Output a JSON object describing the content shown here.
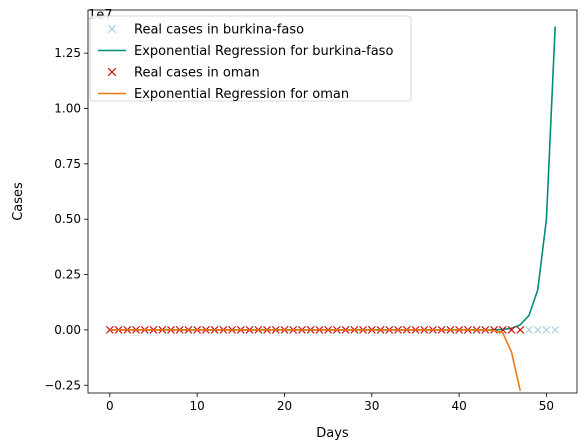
{
  "chart_data": {
    "type": "line",
    "title": "",
    "xlabel": "Days",
    "ylabel": "Cases",
    "y_offset_label": "1e7",
    "xlim": [
      -2.5,
      53.5
    ],
    "ylim": [
      -2850000.0,
      14450000.0
    ],
    "x_ticks": [
      0,
      10,
      20,
      30,
      40,
      50
    ],
    "x_tick_labels": [
      "0",
      "10",
      "20",
      "30",
      "40",
      "50"
    ],
    "y_ticks": [
      -2500000.0,
      0,
      2500000.0,
      5000000.0,
      7500000.0,
      10000000.0,
      12500000.0
    ],
    "y_tick_labels": [
      "−0.25",
      "0.00",
      "0.25",
      "0.50",
      "0.75",
      "1.00",
      "1.25"
    ],
    "grid": false,
    "legend_position": "top-left",
    "series": [
      {
        "name": "Real cases in burkina-faso",
        "kind": "markers",
        "marker": "x",
        "color": "#a6cee3",
        "x": [
          0,
          1,
          2,
          3,
          4,
          5,
          6,
          7,
          8,
          9,
          10,
          11,
          12,
          13,
          14,
          15,
          16,
          17,
          18,
          19,
          20,
          21,
          22,
          23,
          24,
          25,
          26,
          27,
          28,
          29,
          30,
          31,
          32,
          33,
          34,
          35,
          36,
          37,
          38,
          39,
          40,
          41,
          42,
          43,
          44,
          45,
          46,
          47,
          48,
          49,
          50,
          51
        ],
        "y": [
          0,
          0,
          0,
          0,
          0,
          0,
          0,
          0,
          0,
          0,
          0,
          0,
          0,
          0,
          0,
          0,
          0,
          0,
          0,
          0,
          0,
          0,
          0,
          0,
          0,
          0,
          0,
          0,
          0,
          0,
          0,
          0,
          0,
          0,
          0,
          0,
          0,
          0,
          0,
          0,
          0,
          0,
          0,
          0,
          0,
          0,
          0,
          0,
          0,
          0,
          0,
          0
        ]
      },
      {
        "name": "Exponential Regression for burkina-faso",
        "kind": "line",
        "color": "#008c7a",
        "x": [
          0,
          1,
          2,
          3,
          4,
          5,
          6,
          7,
          8,
          9,
          10,
          11,
          12,
          13,
          14,
          15,
          16,
          17,
          18,
          19,
          20,
          21,
          22,
          23,
          24,
          25,
          26,
          27,
          28,
          29,
          30,
          31,
          32,
          33,
          34,
          35,
          36,
          37,
          38,
          39,
          40,
          41,
          42,
          43,
          44,
          45,
          46,
          47,
          48,
          49,
          50,
          51
        ],
        "y": [
          0,
          0,
          0,
          0,
          0,
          0,
          0,
          0,
          0,
          0,
          0,
          0,
          0,
          0,
          0,
          0,
          0,
          0,
          0,
          0,
          0,
          0,
          0,
          0,
          0,
          0,
          0,
          0,
          0,
          0,
          0,
          0,
          0,
          0,
          0,
          0,
          0,
          0,
          0,
          0,
          0,
          0,
          0,
          0,
          5000,
          20000,
          70000,
          230000,
          650000,
          1800000,
          5000000,
          13700000
        ]
      },
      {
        "name": "Real cases in oman",
        "kind": "markers",
        "marker": "x",
        "color": "#d60000",
        "x": [
          0,
          1,
          2,
          3,
          4,
          5,
          6,
          7,
          8,
          9,
          10,
          11,
          12,
          13,
          14,
          15,
          16,
          17,
          18,
          19,
          20,
          21,
          22,
          23,
          24,
          25,
          26,
          27,
          28,
          29,
          30,
          31,
          32,
          33,
          34,
          35,
          36,
          37,
          38,
          39,
          40,
          41,
          42,
          43,
          44,
          45,
          46,
          47
        ],
        "y": [
          0,
          0,
          0,
          0,
          0,
          0,
          0,
          0,
          0,
          0,
          0,
          0,
          0,
          0,
          0,
          0,
          0,
          0,
          0,
          0,
          0,
          0,
          0,
          0,
          0,
          0,
          0,
          0,
          0,
          0,
          0,
          0,
          0,
          0,
          0,
          0,
          0,
          0,
          0,
          0,
          0,
          0,
          0,
          0,
          0,
          0,
          0,
          0
        ]
      },
      {
        "name": "Exponential Regression for oman",
        "kind": "line",
        "color": "#f07810",
        "x": [
          0,
          1,
          2,
          3,
          4,
          5,
          6,
          7,
          8,
          9,
          10,
          11,
          12,
          13,
          14,
          15,
          16,
          17,
          18,
          19,
          20,
          21,
          22,
          23,
          24,
          25,
          26,
          27,
          28,
          29,
          30,
          31,
          32,
          33,
          34,
          35,
          36,
          37,
          38,
          39,
          40,
          41,
          42,
          43,
          44,
          45,
          46,
          47
        ],
        "y": [
          0,
          0,
          0,
          0,
          0,
          0,
          0,
          0,
          0,
          0,
          0,
          0,
          0,
          0,
          0,
          0,
          0,
          0,
          0,
          0,
          0,
          0,
          0,
          0,
          0,
          0,
          0,
          0,
          0,
          0,
          0,
          0,
          0,
          0,
          0,
          0,
          0,
          0,
          0,
          0,
          0,
          0,
          0,
          -5000,
          -30000,
          -130000,
          -1000000,
          -2750000
        ]
      }
    ]
  }
}
